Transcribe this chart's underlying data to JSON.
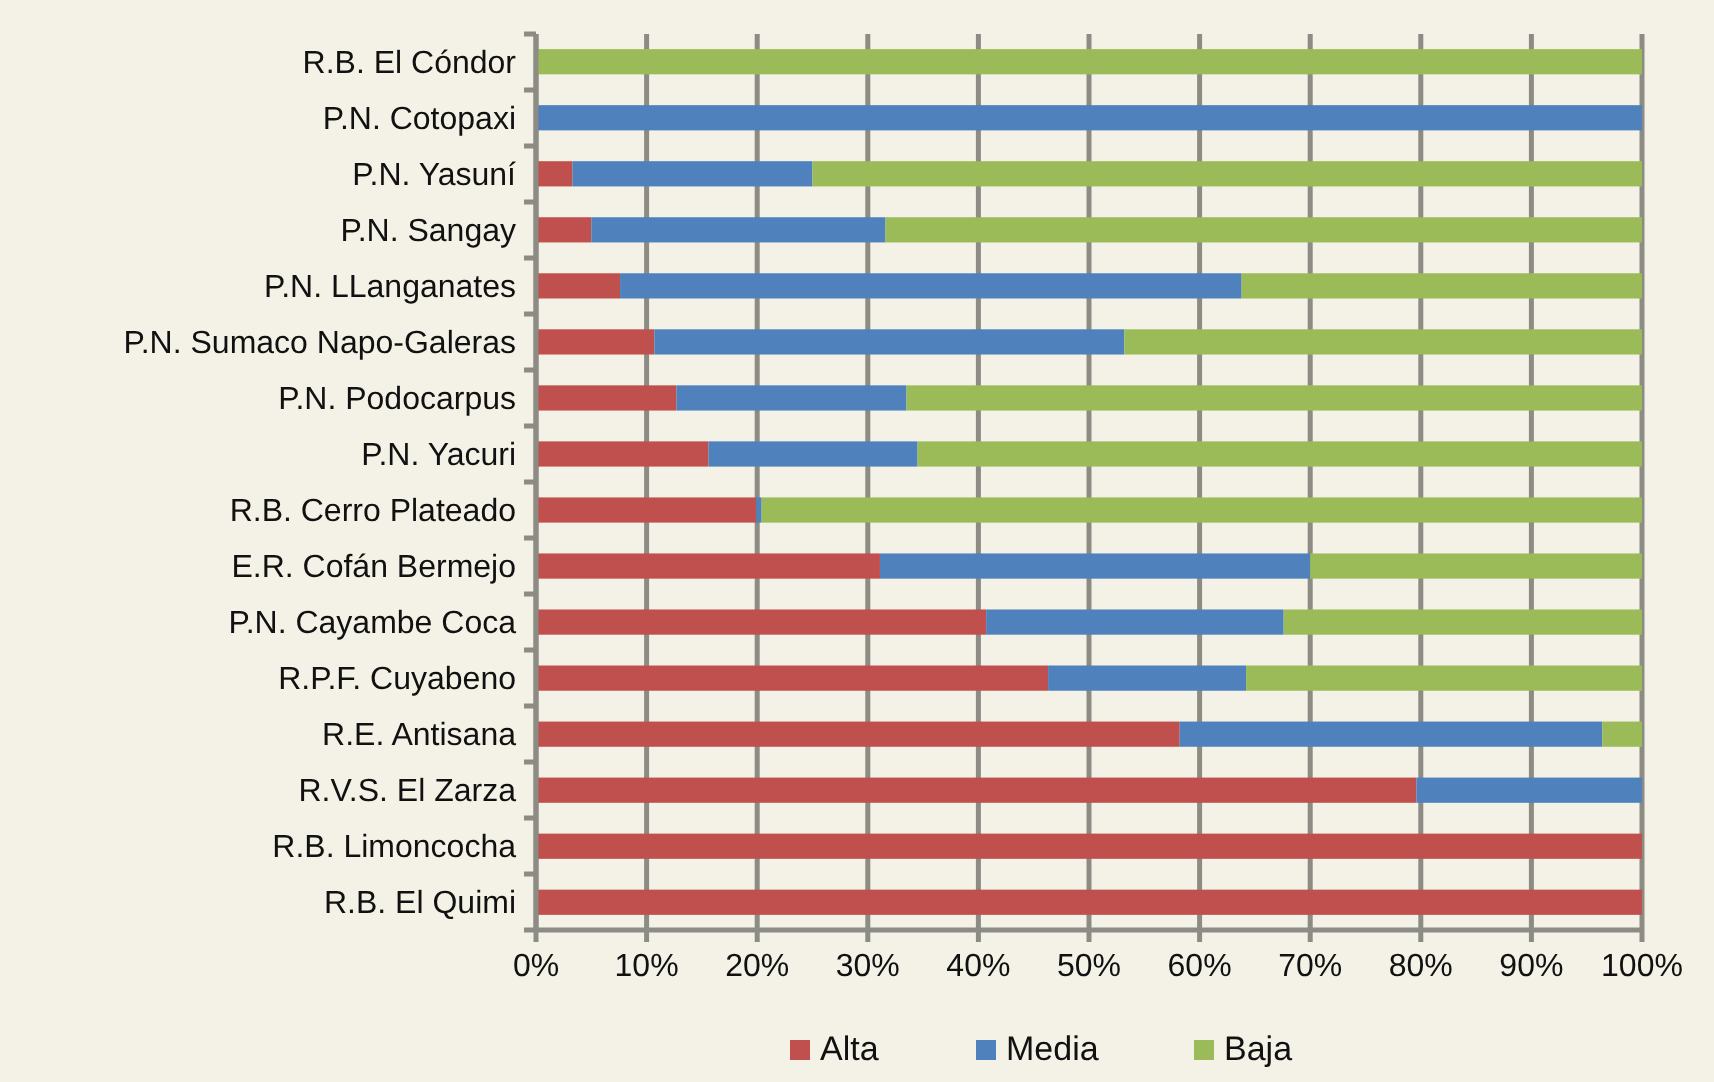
{
  "chart_data": {
    "type": "bar",
    "orientation": "horizontal",
    "stacked": true,
    "categories": [
      "R.B. El Cóndor",
      "P.N.  Cotopaxi",
      "P.N. Yasuní",
      "P.N. Sangay",
      "P.N. LLanganates",
      "P.N. Sumaco Napo-Galeras",
      "P.N. Podocarpus",
      "P.N. Yacuri",
      "R.B.  Cerro Plateado",
      "E.R. Cofán Bermejo",
      "P.N. Cayambe Coca",
      "R.P.F. Cuyabeno",
      "R.E. Antisana",
      "R.V.S. El Zarza",
      "R.B.  Limoncocha",
      "R.B.  El Quimi"
    ],
    "series": [
      {
        "name": "Alta",
        "color": "#c0504d",
        "values": [
          0,
          0,
          3.3,
          5,
          7.6,
          10.7,
          12.7,
          15.6,
          19.9,
          31.1,
          40.7,
          46.3,
          58.2,
          79.6,
          100,
          100
        ]
      },
      {
        "name": "Media",
        "color": "#4f81bd",
        "values": [
          0,
          100,
          21.7,
          26.6,
          56.2,
          42.5,
          20.8,
          18.9,
          0.5,
          38.9,
          26.9,
          17.9,
          38.2,
          20.4,
          0,
          0
        ]
      },
      {
        "name": "Baja",
        "color": "#9bbb59",
        "values": [
          100,
          0,
          75,
          68.4,
          36.2,
          46.8,
          66.5,
          65.5,
          79.6,
          30,
          32.4,
          35.8,
          3.6,
          0,
          0,
          0
        ]
      }
    ],
    "xlim": [
      0,
      100
    ],
    "xticks": [
      {
        "value": 0,
        "label": "0%"
      },
      {
        "value": 10,
        "label": "10%"
      },
      {
        "value": 20,
        "label": "20%"
      },
      {
        "value": 30,
        "label": "30%"
      },
      {
        "value": 40,
        "label": "40%"
      },
      {
        "value": 50,
        "label": "50%"
      },
      {
        "value": 60,
        "label": "60%"
      },
      {
        "value": 70,
        "label": "70%"
      },
      {
        "value": 80,
        "label": "80%"
      },
      {
        "value": 90,
        "label": "90%"
      },
      {
        "value": 100,
        "label": "100%"
      }
    ],
    "grid": "x",
    "legend": "bottom"
  }
}
